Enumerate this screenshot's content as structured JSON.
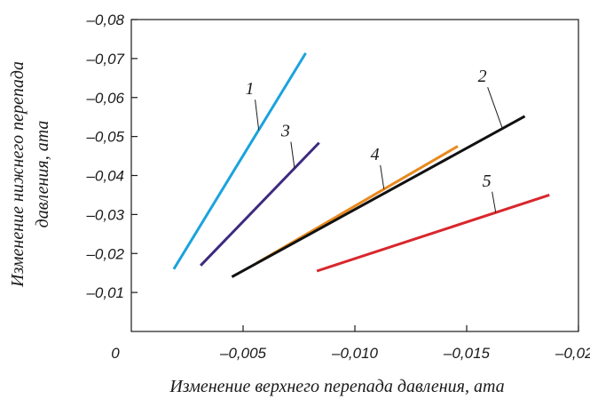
{
  "chart_data": {
    "type": "line",
    "xlabel": "Изменение верхнего перепада давления, ата",
    "ylabel_lines": [
      "Изменение нижнего перепада",
      "давления, ата"
    ],
    "xlim": [
      0,
      -0.02
    ],
    "ylim": [
      0,
      -0.08
    ],
    "x_ticks": [
      {
        "value": 0,
        "label": "0"
      },
      {
        "value": -0.005,
        "label": "–0,005"
      },
      {
        "value": -0.01,
        "label": "–0,010"
      },
      {
        "value": -0.015,
        "label": "–0,015"
      },
      {
        "value": -0.02,
        "label": "–0,020"
      }
    ],
    "y_ticks": [
      {
        "value": -0.01,
        "label": "–0,01"
      },
      {
        "value": -0.02,
        "label": "–0,02"
      },
      {
        "value": -0.03,
        "label": "–0,03"
      },
      {
        "value": -0.04,
        "label": "–0,04"
      },
      {
        "value": -0.05,
        "label": "–0,05"
      },
      {
        "value": -0.06,
        "label": "–0,06"
      },
      {
        "value": -0.07,
        "label": "–0,07"
      },
      {
        "value": -0.08,
        "label": "–0,08"
      }
    ],
    "grid": false,
    "series": [
      {
        "name": "1",
        "color": "#1aa3dd",
        "x": [
          -0.0019,
          -0.0078
        ],
        "y": [
          -0.016,
          -0.0714
        ],
        "label_at": {
          "x": -0.0053,
          "y": -0.0608
        }
      },
      {
        "name": "3",
        "color": "#3d2a7f",
        "x": [
          -0.0031,
          -0.0084
        ],
        "y": [
          -0.0169,
          -0.0484
        ],
        "label_at": {
          "x": -0.0069,
          "y": -0.05
        }
      },
      {
        "name": "4",
        "color": "#e8891e",
        "x": [
          -0.0056,
          -0.0146
        ],
        "y": [
          -0.0175,
          -0.0475
        ],
        "label_at": {
          "x": -0.0109,
          "y": -0.044
        }
      },
      {
        "name": "2",
        "color": "#111111",
        "x": [
          -0.0045,
          -0.0176
        ],
        "y": [
          -0.014,
          -0.0552
        ],
        "label_at": {
          "x": -0.0157,
          "y": -0.064
        }
      },
      {
        "name": "5",
        "color": "#d9262c",
        "x": [
          -0.0083,
          -0.0187
        ],
        "y": [
          -0.0155,
          -0.035
        ],
        "label_at": {
          "x": -0.0159,
          "y": -0.0372
        }
      }
    ]
  }
}
